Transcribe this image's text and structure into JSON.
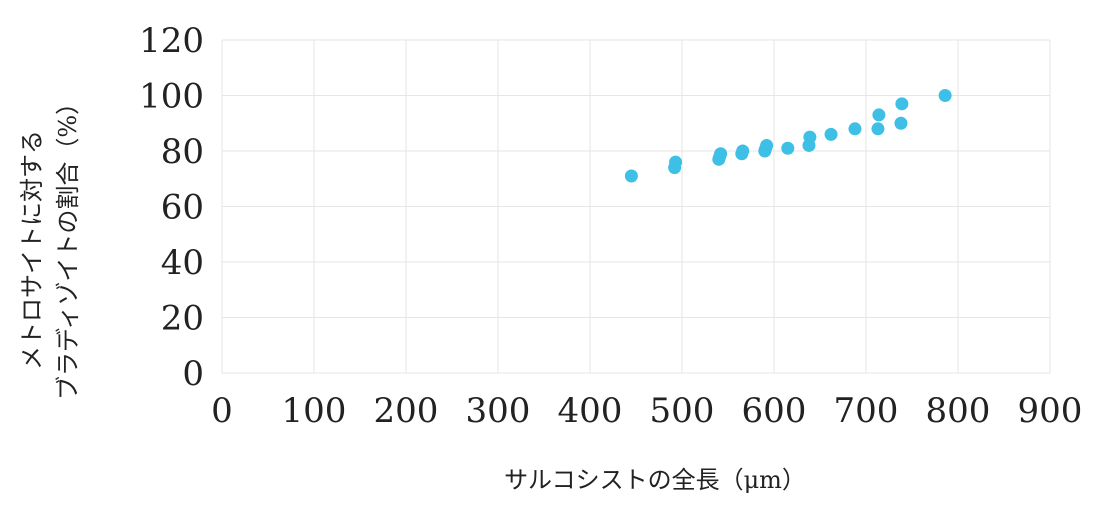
{
  "chart_data": {
    "type": "scatter",
    "xlabel": "サルコシストの全長（μm）",
    "ylabel_lines": [
      "メトロサイトに対する",
      "ブラディゾイトの割合（%）"
    ],
    "xlim": [
      0,
      900
    ],
    "ylim": [
      0,
      120
    ],
    "x_ticks": [
      "0",
      "100",
      "200",
      "300",
      "400",
      "500",
      "600",
      "700",
      "800",
      "900"
    ],
    "y_ticks": [
      "0",
      "20",
      "40",
      "60",
      "80",
      "100",
      "120"
    ],
    "grid": true,
    "point_color": "#3ec0e6",
    "points": [
      {
        "x": 445,
        "y": 71
      },
      {
        "x": 492,
        "y": 74
      },
      {
        "x": 493,
        "y": 76
      },
      {
        "x": 540,
        "y": 77
      },
      {
        "x": 541,
        "y": 78
      },
      {
        "x": 542,
        "y": 79
      },
      {
        "x": 565,
        "y": 79
      },
      {
        "x": 566,
        "y": 80
      },
      {
        "x": 590,
        "y": 80
      },
      {
        "x": 591,
        "y": 81
      },
      {
        "x": 592,
        "y": 82
      },
      {
        "x": 615,
        "y": 81
      },
      {
        "x": 638,
        "y": 82
      },
      {
        "x": 639,
        "y": 85
      },
      {
        "x": 662,
        "y": 86
      },
      {
        "x": 688,
        "y": 88
      },
      {
        "x": 713,
        "y": 88
      },
      {
        "x": 714,
        "y": 93
      },
      {
        "x": 738,
        "y": 90
      },
      {
        "x": 739,
        "y": 97
      },
      {
        "x": 786,
        "y": 100
      }
    ]
  }
}
